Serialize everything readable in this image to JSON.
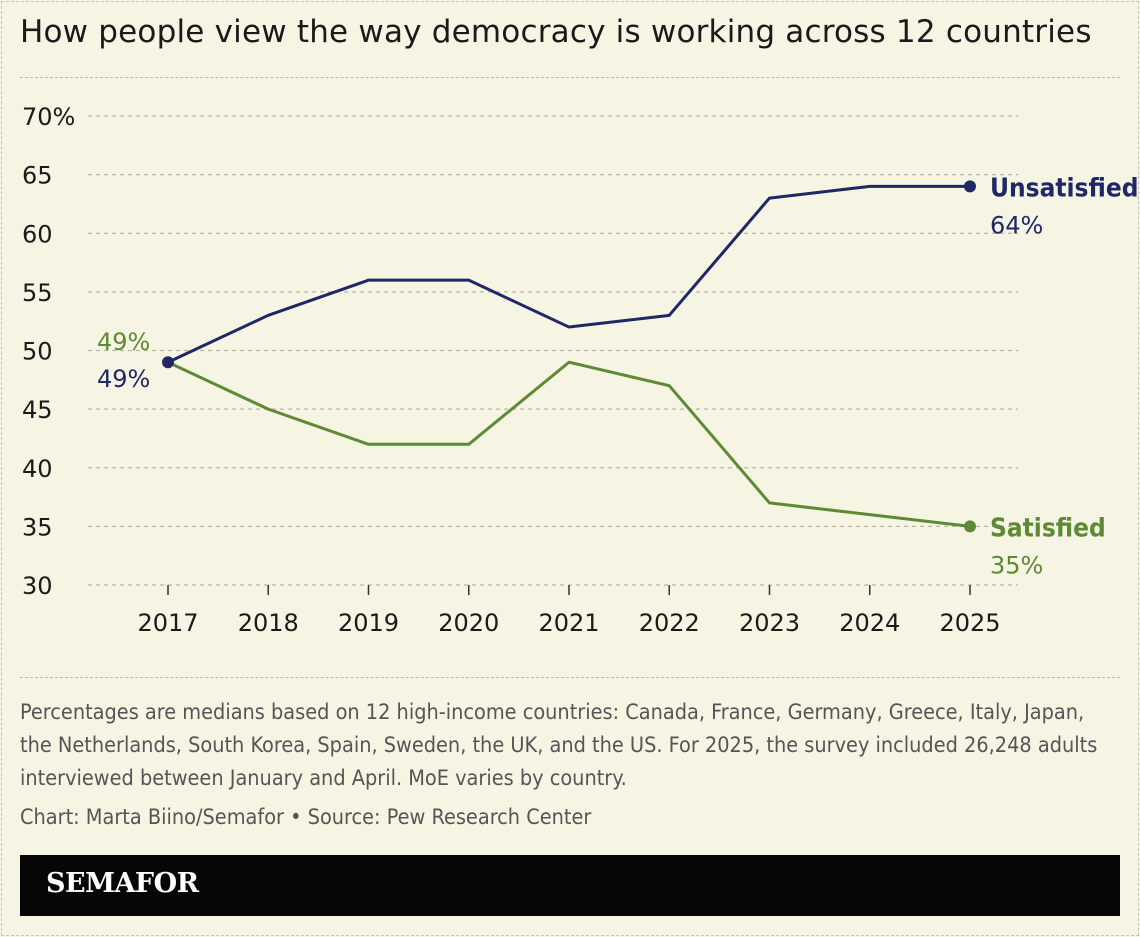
{
  "title": "How people view the way democracy is working across 12 countries",
  "note": "Percentages are medians based on 12 high-income countries: Canada, France, Germany, Greece, Italy, Japan, the Netherlands, South Korea, Spain, Sweden, the UK, and the US. For 2025, the survey included 26,248 adults interviewed between January and April. MoE varies by country.",
  "credit": "Chart: Marta Biino/Semafor • Source: Pew Research Center",
  "brand": "SEMAFOR",
  "colors": {
    "unsatisfied": "#1f2766",
    "satisfied": "#5e8a35",
    "grid": "#b9b6a2"
  },
  "chart_data": {
    "type": "line",
    "title": "How people view the way democracy is working across 12 countries",
    "x": [
      2017,
      2018,
      2019,
      2020,
      2021,
      2022,
      2023,
      2024,
      2025
    ],
    "ylim": [
      30,
      70
    ],
    "yticks": [
      30,
      35,
      40,
      45,
      50,
      55,
      60,
      65,
      70
    ],
    "ytick_labels": [
      "30",
      "35",
      "40",
      "45",
      "50",
      "55",
      "60",
      "65",
      "70%"
    ],
    "grid": true,
    "series": [
      {
        "name": "Unsatisfied",
        "values": [
          49,
          53,
          56,
          56,
          52,
          53,
          63,
          64,
          64
        ],
        "start_label": "49%",
        "end_label": "64%"
      },
      {
        "name": "Satisfied",
        "values": [
          49,
          45,
          42,
          42,
          49,
          47,
          37,
          36,
          35
        ],
        "start_label": "49%",
        "end_label": "35%"
      }
    ]
  }
}
